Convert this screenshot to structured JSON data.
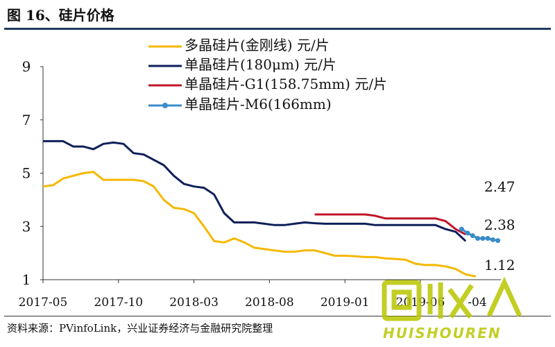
{
  "header": {
    "title": "图 16、硅片价格"
  },
  "footer": {
    "source": "资料来源：PVinfoLink，兴业证券经济与金融研究院整理"
  },
  "watermark": {
    "text": "HUISHOUREN"
  },
  "chart_data": {
    "type": "line",
    "title": "",
    "xlabel": "",
    "ylabel": "",
    "ylim": [
      1,
      9
    ],
    "yticks": [
      "9",
      "7",
      "5",
      "3",
      "1"
    ],
    "xticks": [
      "2017-05",
      "2017-10",
      "2018-03",
      "2018-08",
      "2019-01",
      "2019-06",
      "-04"
    ],
    "grid": false,
    "legend": "top",
    "series": [
      {
        "name": "多晶硅片(金刚线) 元/片",
        "color": "#f5b800",
        "points": [
          [
            0,
            4.5
          ],
          [
            1,
            4.55
          ],
          [
            2,
            4.8
          ],
          [
            3,
            4.9
          ],
          [
            4,
            5.0
          ],
          [
            5,
            5.05
          ],
          [
            6,
            4.75
          ],
          [
            7,
            4.75
          ],
          [
            8,
            4.75
          ],
          [
            9,
            4.75
          ],
          [
            10,
            4.7
          ],
          [
            11,
            4.5
          ],
          [
            12,
            4.0
          ],
          [
            13,
            3.7
          ],
          [
            14,
            3.65
          ],
          [
            15,
            3.5
          ],
          [
            16,
            3.0
          ],
          [
            17,
            2.45
          ],
          [
            18,
            2.4
          ],
          [
            19,
            2.55
          ],
          [
            20,
            2.4
          ],
          [
            21,
            2.2
          ],
          [
            22,
            2.15
          ],
          [
            23,
            2.1
          ],
          [
            24,
            2.05
          ],
          [
            25,
            2.05
          ],
          [
            26,
            2.1
          ],
          [
            27,
            2.1
          ],
          [
            28,
            2.0
          ],
          [
            29,
            1.9
          ],
          [
            30,
            1.9
          ],
          [
            31,
            1.88
          ],
          [
            32,
            1.85
          ],
          [
            33,
            1.85
          ],
          [
            34,
            1.8
          ],
          [
            35,
            1.78
          ],
          [
            36,
            1.75
          ],
          [
            37,
            1.6
          ],
          [
            38,
            1.55
          ],
          [
            39,
            1.55
          ],
          [
            40,
            1.5
          ],
          [
            41,
            1.4
          ],
          [
            42,
            1.2
          ],
          [
            43,
            1.12
          ]
        ]
      },
      {
        "name": "单晶硅片(180μm) 元/片",
        "color": "#0e1f5a",
        "points": [
          [
            0,
            6.2
          ],
          [
            1,
            6.2
          ],
          [
            2,
            6.2
          ],
          [
            3,
            6.0
          ],
          [
            4,
            6.0
          ],
          [
            5,
            5.9
          ],
          [
            6,
            6.1
          ],
          [
            7,
            6.15
          ],
          [
            8,
            6.1
          ],
          [
            9,
            5.75
          ],
          [
            10,
            5.7
          ],
          [
            11,
            5.5
          ],
          [
            12,
            5.3
          ],
          [
            13,
            4.9
          ],
          [
            14,
            4.6
          ],
          [
            15,
            4.5
          ],
          [
            16,
            4.45
          ],
          [
            17,
            4.2
          ],
          [
            18,
            3.5
          ],
          [
            19,
            3.15
          ],
          [
            20,
            3.15
          ],
          [
            21,
            3.15
          ],
          [
            22,
            3.1
          ],
          [
            23,
            3.05
          ],
          [
            24,
            3.05
          ],
          [
            25,
            3.1
          ],
          [
            26,
            3.15
          ],
          [
            27,
            3.12
          ],
          [
            28,
            3.1
          ],
          [
            29,
            3.1
          ],
          [
            30,
            3.1
          ],
          [
            31,
            3.1
          ],
          [
            32,
            3.1
          ],
          [
            33,
            3.05
          ],
          [
            34,
            3.05
          ],
          [
            35,
            3.05
          ],
          [
            36,
            3.05
          ],
          [
            37,
            3.05
          ],
          [
            38,
            3.05
          ],
          [
            39,
            3.05
          ],
          [
            40,
            2.9
          ],
          [
            41,
            2.8
          ],
          [
            42,
            2.45
          ]
        ]
      },
      {
        "name": "单晶硅片-G1(158.75mm) 元/片",
        "color": "#c0142a",
        "points": [
          [
            27,
            3.45
          ],
          [
            28,
            3.45
          ],
          [
            29,
            3.45
          ],
          [
            30,
            3.45
          ],
          [
            31,
            3.45
          ],
          [
            32,
            3.45
          ],
          [
            33,
            3.4
          ],
          [
            34,
            3.3
          ],
          [
            35,
            3.3
          ],
          [
            36,
            3.3
          ],
          [
            37,
            3.3
          ],
          [
            38,
            3.3
          ],
          [
            39,
            3.3
          ],
          [
            40,
            3.2
          ],
          [
            41,
            2.9
          ],
          [
            42,
            2.7
          ]
        ]
      },
      {
        "name": "单晶硅片-M6(166mm)",
        "color": "#3a8cc8",
        "markers": true,
        "points": [
          [
            41.6,
            2.9
          ],
          [
            42.2,
            2.75
          ],
          [
            42.7,
            2.65
          ],
          [
            43.2,
            2.55
          ],
          [
            43.7,
            2.55
          ],
          [
            44.2,
            2.55
          ],
          [
            44.7,
            2.5
          ],
          [
            45.2,
            2.47
          ]
        ]
      }
    ],
    "annotations": [
      "2.47",
      "2.38",
      "1.12"
    ]
  }
}
